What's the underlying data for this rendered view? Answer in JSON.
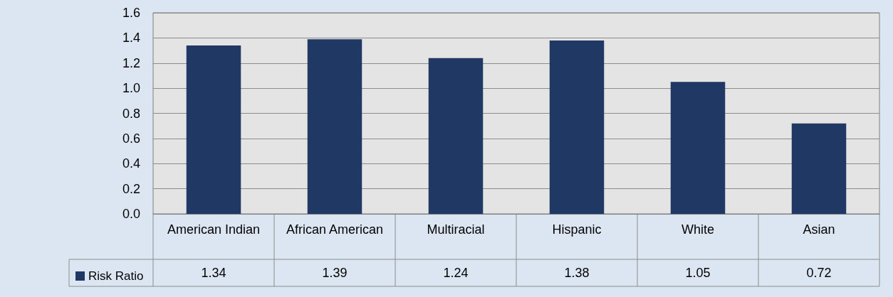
{
  "chart_data": {
    "type": "bar",
    "categories": [
      "American Indian",
      "African American",
      "Multiracial",
      "Hispanic",
      "White",
      "Asian"
    ],
    "series": [
      {
        "name": "Risk Ratio",
        "color": "#203864",
        "values": [
          1.34,
          1.39,
          1.24,
          1.38,
          1.05,
          0.72
        ]
      }
    ],
    "ylim": [
      0,
      1.6
    ],
    "yticks": [
      {
        "value": 0,
        "label": "0.0"
      },
      {
        "value": 0.2,
        "label": "0.2"
      },
      {
        "value": 0.4,
        "label": "0.4"
      },
      {
        "value": 0.6,
        "label": "0.6"
      },
      {
        "value": 0.8,
        "label": "0.8"
      },
      {
        "value": 1,
        "label": "1.0"
      },
      {
        "value": 1.2,
        "label": "1.2"
      },
      {
        "value": 1.4,
        "label": "1.4"
      },
      {
        "value": 1.6,
        "label": "1.6"
      }
    ],
    "grid": "y",
    "legend": "bottom left",
    "data_labels": true
  }
}
